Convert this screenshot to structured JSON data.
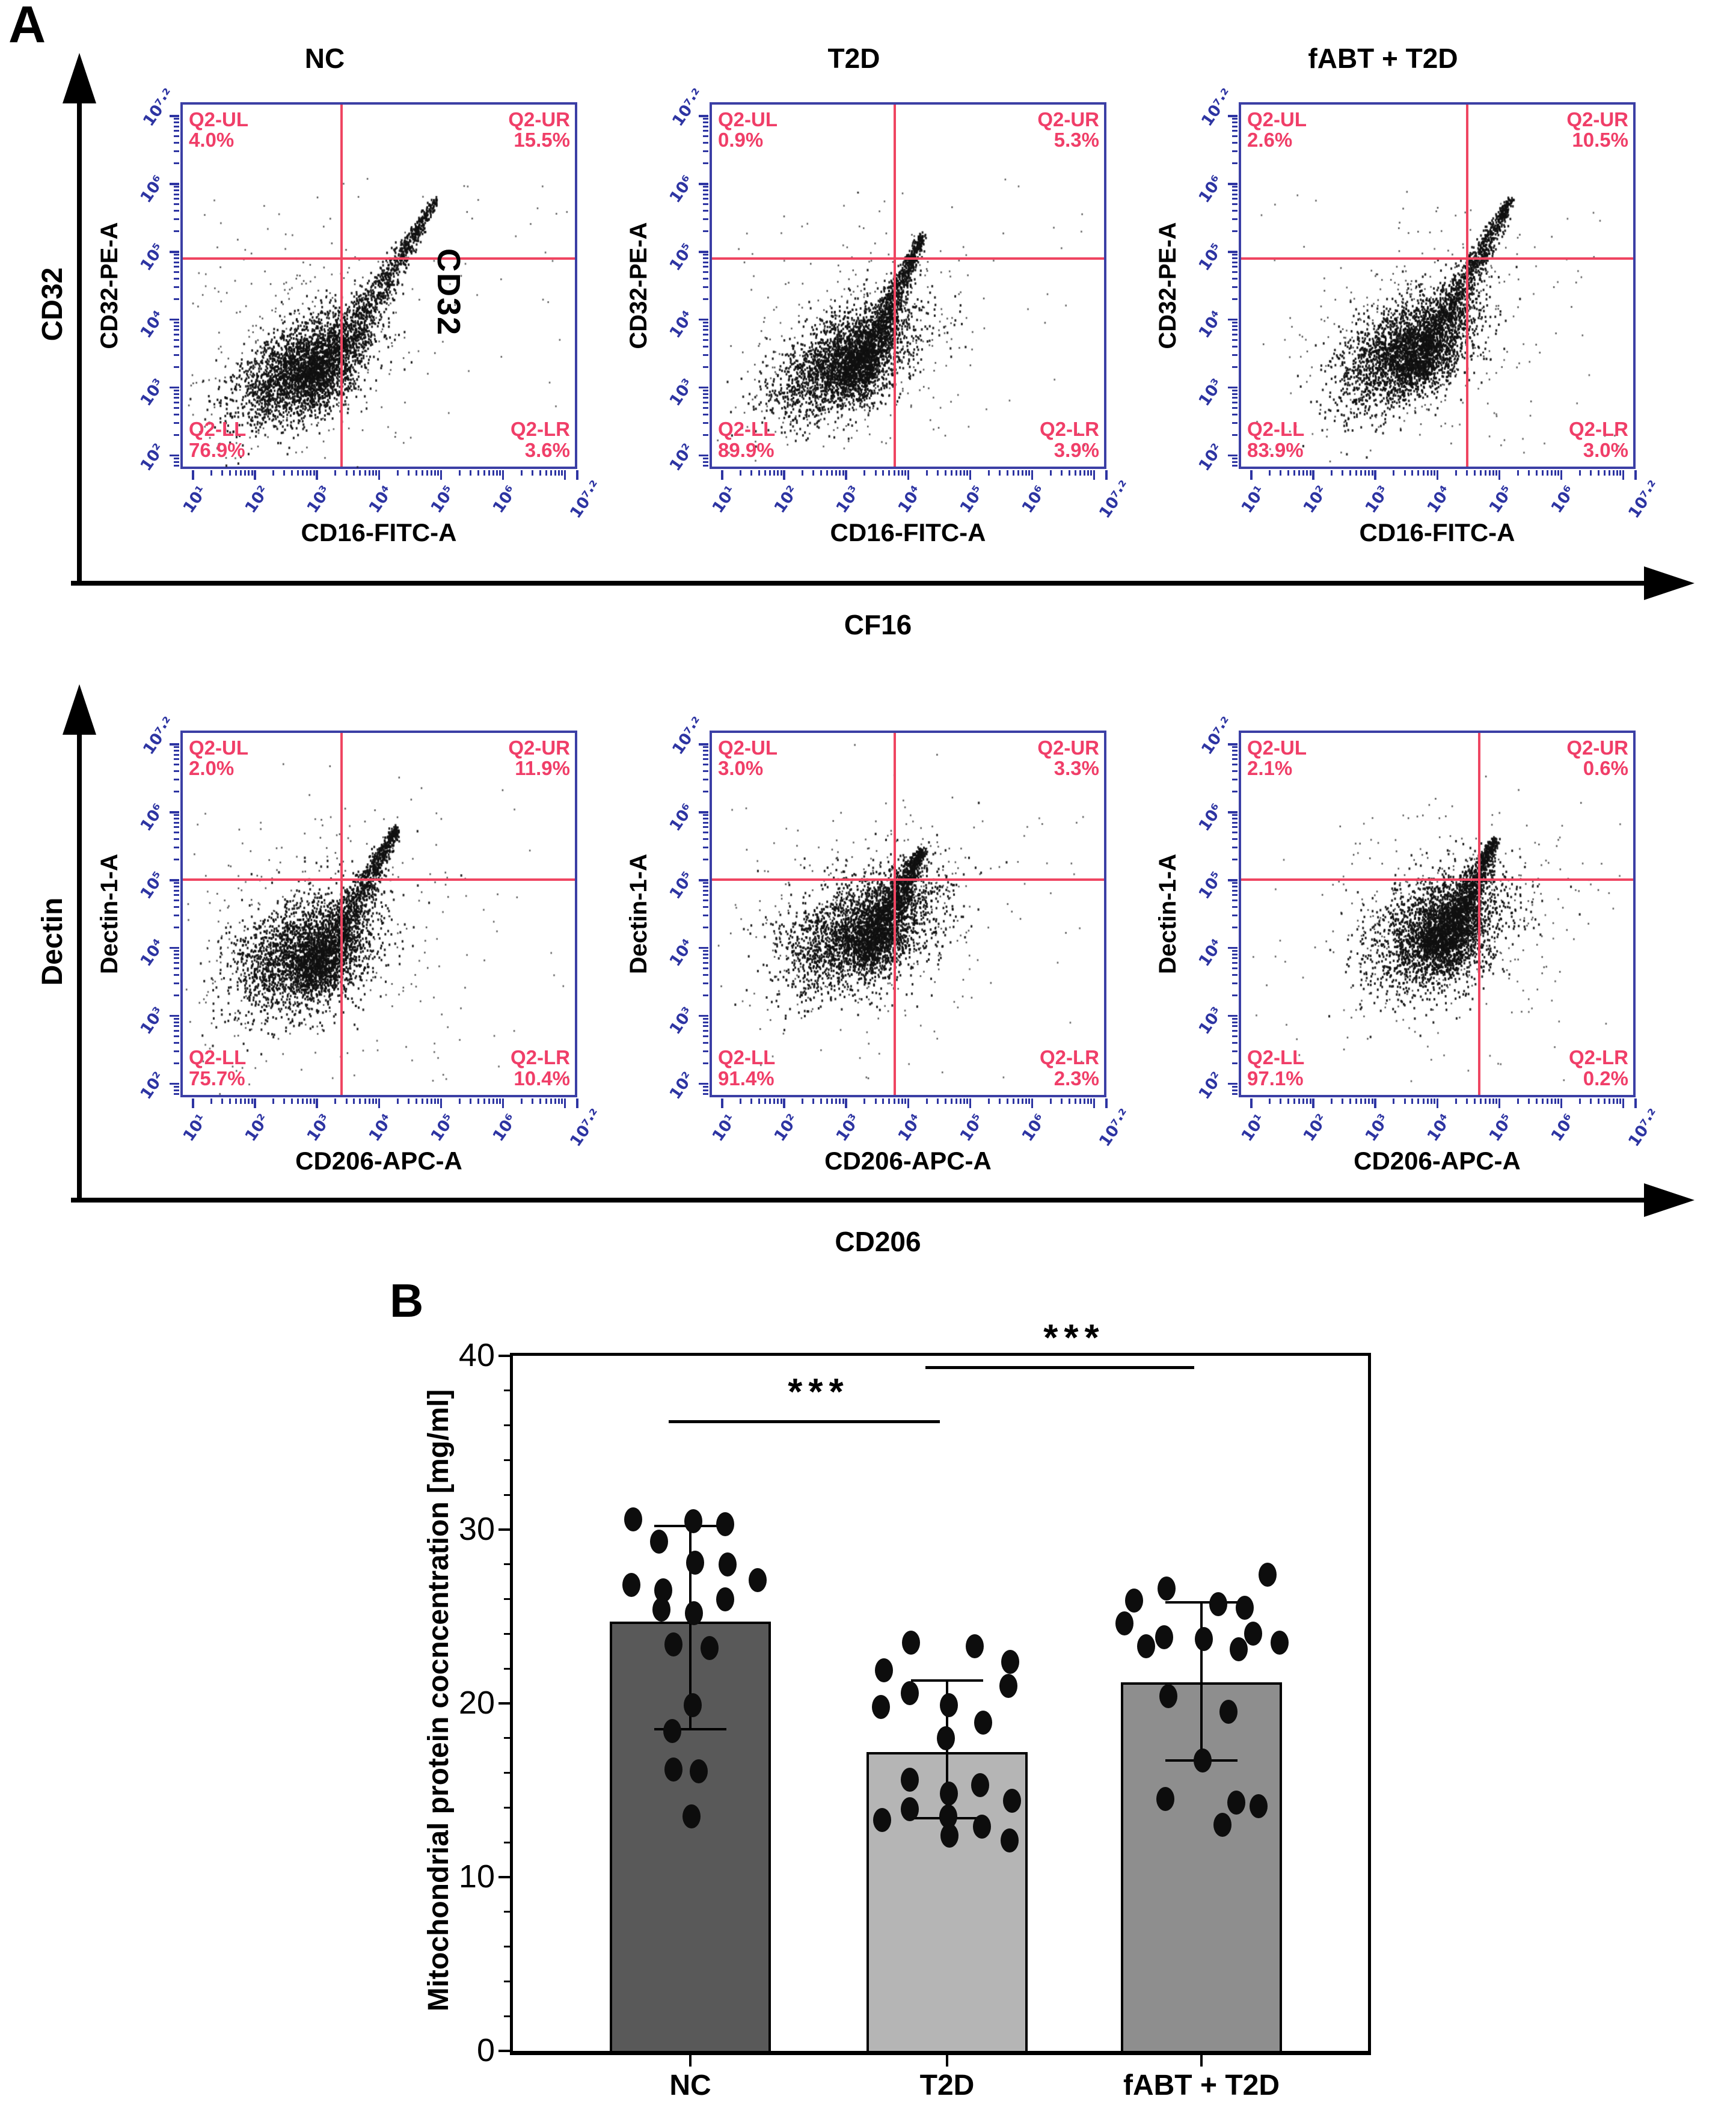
{
  "panel_a": {
    "label": "A",
    "row_axis_labels": [
      {
        "y_outer": "CD32",
        "x_outer": "CF16"
      },
      {
        "y_outer": "Dectin",
        "x_outer": "CD206"
      }
    ],
    "x_tick_labels": [
      "10¹",
      "10²",
      "10³",
      "10⁴",
      "10⁵",
      "10⁶",
      "10⁷·²"
    ],
    "y_tick_labels": [
      "10⁷·²",
      "10⁶",
      "10⁵",
      "10⁴",
      "10³",
      "10²"
    ],
    "plots": [
      {
        "title": "NC",
        "y_label": "CD32-PE-A",
        "x_label": "CD16-FITC-A",
        "annotation": "CD32",
        "q": {
          "ul": {
            "label": "Q2-UL",
            "pct": "4.0%"
          },
          "ur": {
            "label": "Q2-UR",
            "pct": "15.5%"
          },
          "ll": {
            "label": "Q2-LL",
            "pct": "76.9%"
          },
          "lr": {
            "label": "Q2-LR",
            "pct": "3.6%"
          }
        },
        "gate": {
          "vx": 0.4,
          "hy": 0.42
        },
        "scatter": {
          "seed": 11,
          "blob": [
            0.3,
            0.72,
            0.082,
            0.065
          ],
          "tilt": 0.5,
          "streak": [
            0.33,
            0.78,
            0.64,
            0.26
          ],
          "halo": 0.16
        }
      },
      {
        "title": "T2D",
        "y_label": "CD32-PE-A",
        "x_label": "CD16-FITC-A",
        "q": {
          "ul": {
            "label": "Q2-UL",
            "pct": "0.9%"
          },
          "ur": {
            "label": "Q2-UR",
            "pct": "5.3%"
          },
          "ll": {
            "label": "Q2-LL",
            "pct": "89.9%"
          },
          "lr": {
            "label": "Q2-LR",
            "pct": "3.9%"
          }
        },
        "gate": {
          "vx": 0.46,
          "hy": 0.42
        },
        "scatter": {
          "seed": 23,
          "blob": [
            0.34,
            0.7,
            0.088,
            0.065
          ],
          "tilt": 0.45,
          "streak": [
            0.36,
            0.75,
            0.53,
            0.36
          ],
          "halo": 0.15
        }
      },
      {
        "title": "fABT + T2D",
        "y_label": "CD32-PE-A",
        "x_label": "CD16-FITC-A",
        "q": {
          "ul": {
            "label": "Q2-UL",
            "pct": "2.6%"
          },
          "ur": {
            "label": "Q2-UR",
            "pct": "10.5%"
          },
          "ll": {
            "label": "Q2-LL",
            "pct": "83.9%"
          },
          "lr": {
            "label": "Q2-LR",
            "pct": "3.0%"
          }
        },
        "gate": {
          "vx": 0.57,
          "hy": 0.42
        },
        "scatter": {
          "seed": 37,
          "blob": [
            0.42,
            0.67,
            0.085,
            0.068
          ],
          "tilt": 0.45,
          "streak": [
            0.44,
            0.73,
            0.68,
            0.26
          ],
          "halo": 0.15
        }
      },
      {
        "title": "",
        "y_label": "Dectin-1-A",
        "x_label": "CD206-APC-A",
        "q": {
          "ul": {
            "label": "Q2-UL",
            "pct": "2.0%"
          },
          "ur": {
            "label": "Q2-UR",
            "pct": "11.9%"
          },
          "ll": {
            "label": "Q2-LL",
            "pct": "75.7%"
          },
          "lr": {
            "label": "Q2-LR",
            "pct": "10.4%"
          }
        },
        "gate": {
          "vx": 0.4,
          "hy": 0.4
        },
        "scatter": {
          "seed": 51,
          "blob": [
            0.31,
            0.6,
            0.09,
            0.075
          ],
          "tilt": 0.35,
          "streak": [
            0.33,
            0.67,
            0.54,
            0.26
          ],
          "halo": 0.18
        }
      },
      {
        "title": "",
        "y_label": "Dectin-1-A",
        "x_label": "CD206-APC-A",
        "q": {
          "ul": {
            "label": "Q2-UL",
            "pct": "3.0%"
          },
          "ur": {
            "label": "Q2-UR",
            "pct": "3.3%"
          },
          "ll": {
            "label": "Q2-LL",
            "pct": "91.4%"
          },
          "lr": {
            "label": "Q2-LR",
            "pct": "2.3%"
          }
        },
        "gate": {
          "vx": 0.46,
          "hy": 0.4
        },
        "scatter": {
          "seed": 67,
          "blob": [
            0.38,
            0.54,
            0.095,
            0.075
          ],
          "tilt": 0.35,
          "streak": [
            0.39,
            0.6,
            0.53,
            0.32
          ],
          "halo": 0.16
        }
      },
      {
        "title": "",
        "y_label": "Dectin-1-A",
        "x_label": "CD206-APC-A",
        "q": {
          "ul": {
            "label": "Q2-UL",
            "pct": "2.1%"
          },
          "ur": {
            "label": "Q2-UR",
            "pct": "0.6%"
          },
          "ll": {
            "label": "Q2-LL",
            "pct": "97.1%"
          },
          "lr": {
            "label": "Q2-LR",
            "pct": "0.2%"
          }
        },
        "gate": {
          "vx": 0.6,
          "hy": 0.4
        },
        "scatter": {
          "seed": 83,
          "blob": [
            0.5,
            0.54,
            0.085,
            0.075
          ],
          "tilt": 0.35,
          "streak": [
            0.5,
            0.6,
            0.64,
            0.29
          ],
          "halo": 0.15
        }
      }
    ]
  },
  "panel_b": {
    "label": "B"
  },
  "chart_data": {
    "type": "bar",
    "title": "",
    "categories": [
      "NC",
      "T2D",
      "fABT + T2D"
    ],
    "values": [
      24.7,
      17.2,
      21.2
    ],
    "error_low": [
      18.5,
      13.4,
      16.7
    ],
    "error_high": [
      30.2,
      21.3,
      25.8
    ],
    "points": [
      [
        [
          30.6,
          -95
        ],
        [
          30.5,
          5
        ],
        [
          30.3,
          58
        ],
        [
          29.3,
          -52
        ],
        [
          28.1,
          8
        ],
        [
          28.0,
          62
        ],
        [
          27.1,
          112
        ],
        [
          26.8,
          -98
        ],
        [
          26.5,
          -45
        ],
        [
          26.0,
          58
        ],
        [
          25.4,
          -48
        ],
        [
          25.2,
          6
        ],
        [
          23.4,
          -28
        ],
        [
          23.2,
          32
        ],
        [
          19.9,
          4
        ],
        [
          18.4,
          -30
        ],
        [
          16.2,
          -28
        ],
        [
          16.1,
          14
        ],
        [
          13.5,
          2
        ]
      ],
      [
        [
          23.5,
          -60
        ],
        [
          23.3,
          46
        ],
        [
          22.4,
          105
        ],
        [
          21.9,
          -105
        ],
        [
          21.0,
          102
        ],
        [
          20.6,
          -62
        ],
        [
          19.9,
          3
        ],
        [
          19.8,
          -110
        ],
        [
          18.9,
          60
        ],
        [
          18.0,
          -2
        ],
        [
          15.6,
          -62
        ],
        [
          15.3,
          55
        ],
        [
          14.8,
          3
        ],
        [
          14.4,
          108
        ],
        [
          13.9,
          -62
        ],
        [
          13.5,
          2
        ],
        [
          13.3,
          -108
        ],
        [
          12.9,
          58
        ],
        [
          12.4,
          4
        ],
        [
          12.1,
          104
        ]
      ],
      [
        [
          27.4,
          110
        ],
        [
          26.6,
          -58
        ],
        [
          25.9,
          -112
        ],
        [
          25.7,
          28
        ],
        [
          25.5,
          72
        ],
        [
          24.6,
          -128
        ],
        [
          24.0,
          86
        ],
        [
          23.8,
          -62
        ],
        [
          23.7,
          4
        ],
        [
          23.5,
          130
        ],
        [
          23.3,
          -92
        ],
        [
          23.1,
          62
        ],
        [
          20.4,
          -55
        ],
        [
          19.5,
          45
        ],
        [
          16.7,
          2
        ],
        [
          14.5,
          -60
        ],
        [
          14.3,
          58
        ],
        [
          14.1,
          95
        ],
        [
          13.0,
          35
        ]
      ]
    ],
    "ylabel": "Mitochondrial protein cocncentration [mg/ml]",
    "xlabel": "",
    "ylim": [
      0,
      40
    ],
    "yticks": [
      0,
      10,
      20,
      30,
      40
    ],
    "minor_tick_step": 2,
    "grid": false,
    "legend": "none",
    "significance": [
      {
        "from": 0,
        "to": 1,
        "label": "***",
        "y": 36.3
      },
      {
        "from": 1,
        "to": 2,
        "label": "***",
        "y": 39.4
      }
    ],
    "bar_colors": [
      "#595959",
      "#b5b5b5",
      "#8e8e8e"
    ]
  },
  "colors": {
    "plot_border": "#3b3fa5",
    "axis_ticks_blue": "#2d34a2",
    "gate_red": "#ef4561",
    "quadrant_text": "#f03e68",
    "scatter_dots": "#101010",
    "bar_nc": "#595959",
    "bar_t2d": "#b5b5b5",
    "bar_fabt": "#8e8e8e"
  }
}
